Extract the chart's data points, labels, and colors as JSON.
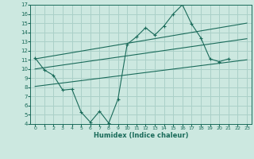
{
  "title": "",
  "xlabel": "Humidex (Indice chaleur)",
  "ylabel": "",
  "bg_color": "#cce8e0",
  "line_color": "#1a6b5a",
  "grid_color": "#aad0c8",
  "xlim": [
    -0.5,
    23.5
  ],
  "ylim": [
    4,
    17
  ],
  "xticks": [
    0,
    1,
    2,
    3,
    4,
    5,
    6,
    7,
    8,
    9,
    10,
    11,
    12,
    13,
    14,
    15,
    16,
    17,
    18,
    19,
    20,
    21,
    22,
    23
  ],
  "yticks": [
    4,
    5,
    6,
    7,
    8,
    9,
    10,
    11,
    12,
    13,
    14,
    15,
    16,
    17
  ],
  "series": {
    "jagged": {
      "x": [
        0,
        1,
        2,
        3,
        4,
        5,
        6,
        7,
        8,
        9,
        10,
        11,
        12,
        13,
        14,
        15,
        16,
        17,
        18,
        19,
        20,
        21
      ],
      "y": [
        11.2,
        9.9,
        9.3,
        7.7,
        7.8,
        5.3,
        4.2,
        5.4,
        4.1,
        6.7,
        12.7,
        13.5,
        14.5,
        13.7,
        14.7,
        16.0,
        17.0,
        14.9,
        13.4,
        11.1,
        10.8,
        11.1
      ]
    },
    "upper_line": {
      "x": [
        0,
        23
      ],
      "y": [
        11.1,
        15.0
      ]
    },
    "lower_line": {
      "x": [
        0,
        23
      ],
      "y": [
        10.0,
        13.3
      ]
    },
    "bottom_line": {
      "x": [
        0,
        23
      ],
      "y": [
        8.1,
        11.0
      ]
    }
  }
}
